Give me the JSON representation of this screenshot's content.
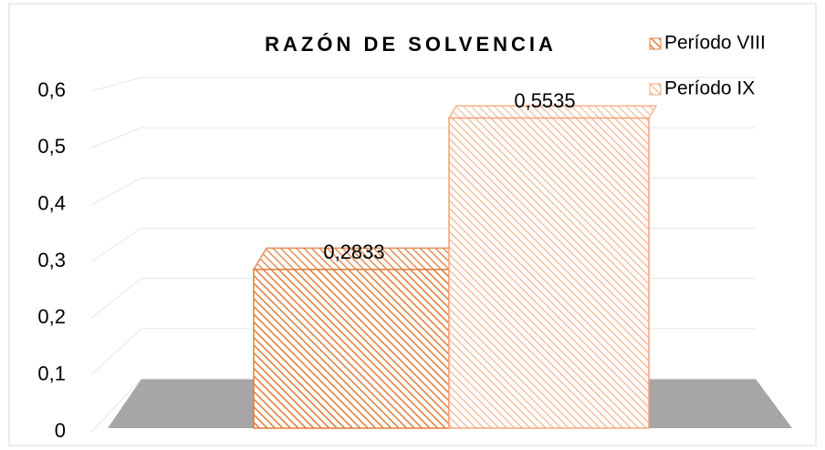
{
  "chart_data": {
    "type": "bar3d",
    "title": "RAZÓN DE SOLVENCIA",
    "categories": [
      null
    ],
    "series": [
      {
        "name": "Período VIII",
        "color": "#e07b39",
        "values": [
          0.2833
        ],
        "value_labels": [
          "0,2833"
        ]
      },
      {
        "name": "Período IX",
        "color": "#f4a47a",
        "values": [
          0.5535
        ],
        "value_labels": [
          "0,5535"
        ]
      }
    ],
    "ylim": [
      0,
      0.6
    ],
    "yticks": [
      0,
      {
        "value": 0.1,
        "label": "0,1"
      },
      {
        "value": 0.2,
        "label": "0,2"
      },
      {
        "value": 0.3,
        "label": "0,3"
      },
      {
        "value": 0.4,
        "label": "0,4"
      },
      {
        "value": 0.5,
        "label": "0,5"
      },
      {
        "value": 0.6,
        "label": "0,6"
      }
    ],
    "grid": true,
    "legend": "top-right"
  }
}
